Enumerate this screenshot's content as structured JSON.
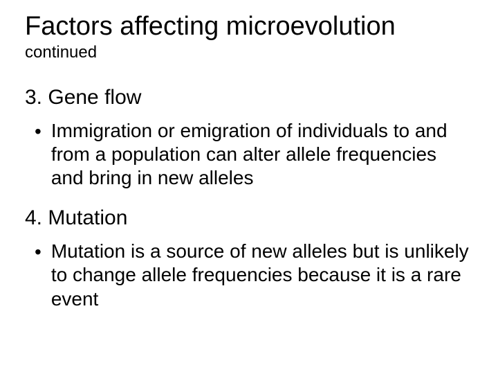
{
  "slide": {
    "title": "Factors affecting microevolution",
    "subtitle": "continued",
    "sections": [
      {
        "heading": "3. Gene flow",
        "bullet": "Immigration or emigration of individuals to and from a population can alter allele frequencies and bring in new alleles"
      },
      {
        "heading": "4.  Mutation",
        "bullet": "Mutation is a source of new alleles but is unlikely to change allele frequencies because it is a rare event"
      }
    ]
  }
}
